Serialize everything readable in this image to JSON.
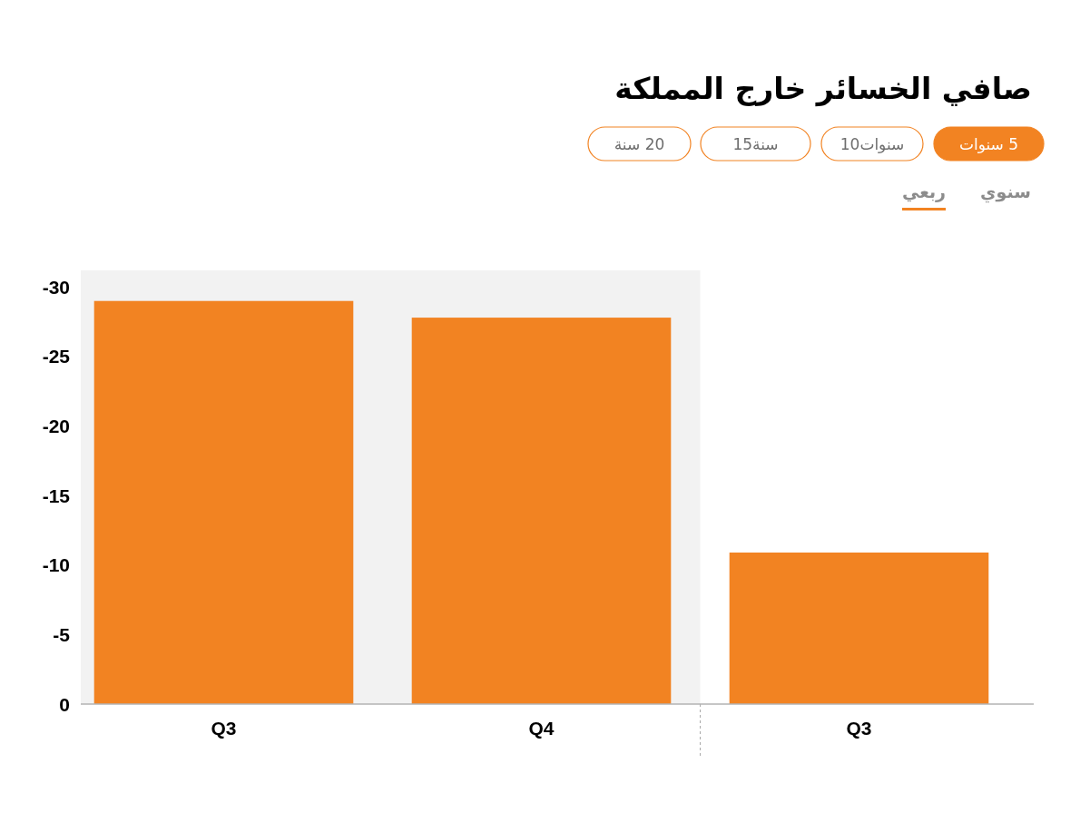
{
  "chart_data": {
    "type": "bar",
    "title": "صافي الخسائر خارج المملكة",
    "categories": [
      "Q3",
      "Q4",
      "Q3"
    ],
    "values": [
      -29.0,
      -27.8,
      -10.9
    ],
    "color": "#f28322",
    "ylim": [
      0,
      -31.2
    ],
    "yticks": [
      -30,
      -25,
      -20,
      -15,
      -10,
      -5,
      0
    ],
    "bands": [
      {
        "axis": "x",
        "from": "Q3",
        "to": "Q4",
        "color": "#f2f2f2"
      }
    ],
    "annotations": [
      "5 سنوات",
      "سنوات10",
      "سنة15",
      "20 سنة",
      "سنوي",
      "ربعي"
    ]
  }
}
